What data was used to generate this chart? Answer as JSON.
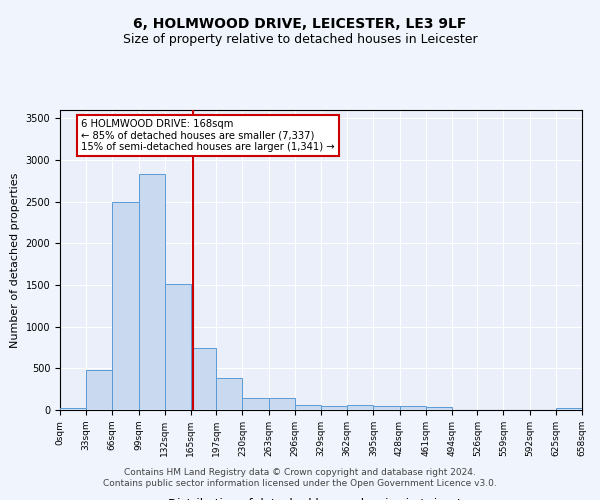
{
  "title": "6, HOLMWOOD DRIVE, LEICESTER, LE3 9LF",
  "subtitle": "Size of property relative to detached houses in Leicester",
  "xlabel": "Distribution of detached houses by size in Leicester",
  "ylabel": "Number of detached properties",
  "footer_line1": "Contains HM Land Registry data © Crown copyright and database right 2024.",
  "footer_line2": "Contains public sector information licensed under the Open Government Licence v3.0.",
  "annotation_line1": "6 HOLMWOOD DRIVE: 168sqm",
  "annotation_line2": "← 85% of detached houses are smaller (7,337)",
  "annotation_line3": "15% of semi-detached houses are larger (1,341) →",
  "bin_edges": [
    0,
    33,
    66,
    99,
    132,
    165,
    197,
    230,
    263,
    296,
    329,
    362,
    395,
    428,
    461,
    494,
    526,
    559,
    592,
    625,
    658
  ],
  "bin_counts": [
    25,
    480,
    2500,
    2830,
    1510,
    740,
    390,
    150,
    145,
    60,
    50,
    55,
    45,
    45,
    40,
    0,
    0,
    0,
    0,
    25
  ],
  "tick_labels": [
    "0sqm",
    "33sqm",
    "66sqm",
    "99sqm",
    "132sqm",
    "165sqm",
    "197sqm",
    "230sqm",
    "263sqm",
    "296sqm",
    "329sqm",
    "362sqm",
    "395sqm",
    "428sqm",
    "461sqm",
    "494sqm",
    "526sqm",
    "559sqm",
    "592sqm",
    "625sqm",
    "658sqm"
  ],
  "bar_color": "#c9d9f0",
  "bar_edge_color": "#5b9bd5",
  "vline_x": 168,
  "vline_color": "#cc0000",
  "annotation_box_color": "#cc0000",
  "ylim": [
    0,
    3600
  ],
  "yticks": [
    0,
    500,
    1000,
    1500,
    2000,
    2500,
    3000,
    3500
  ],
  "background_color": "#eaeff9",
  "grid_color": "#ffffff",
  "title_fontsize": 10,
  "subtitle_fontsize": 9,
  "axis_label_fontsize": 8,
  "tick_fontsize": 6.5,
  "footer_fontsize": 6.5,
  "annotation_fontsize": 7.2
}
